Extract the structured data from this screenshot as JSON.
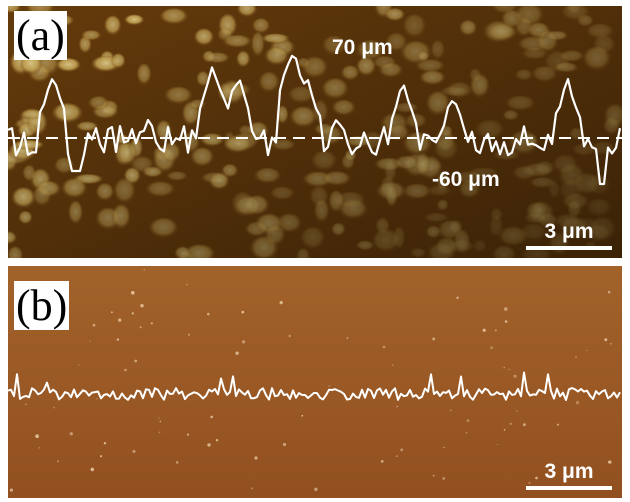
{
  "panel_a": {
    "label": "(a)",
    "max_height_label": "70 μm",
    "min_height_label": "-60 μm",
    "scale_bar": "3 μm",
    "colors": {
      "base": "#6a3e0c",
      "grain": "#e8cc72",
      "grain_dark": "#c9a24a"
    }
  },
  "panel_b": {
    "label": "(b)",
    "scale_bar": "3 μm",
    "colors": {
      "base": "#9b5a24"
    }
  }
}
